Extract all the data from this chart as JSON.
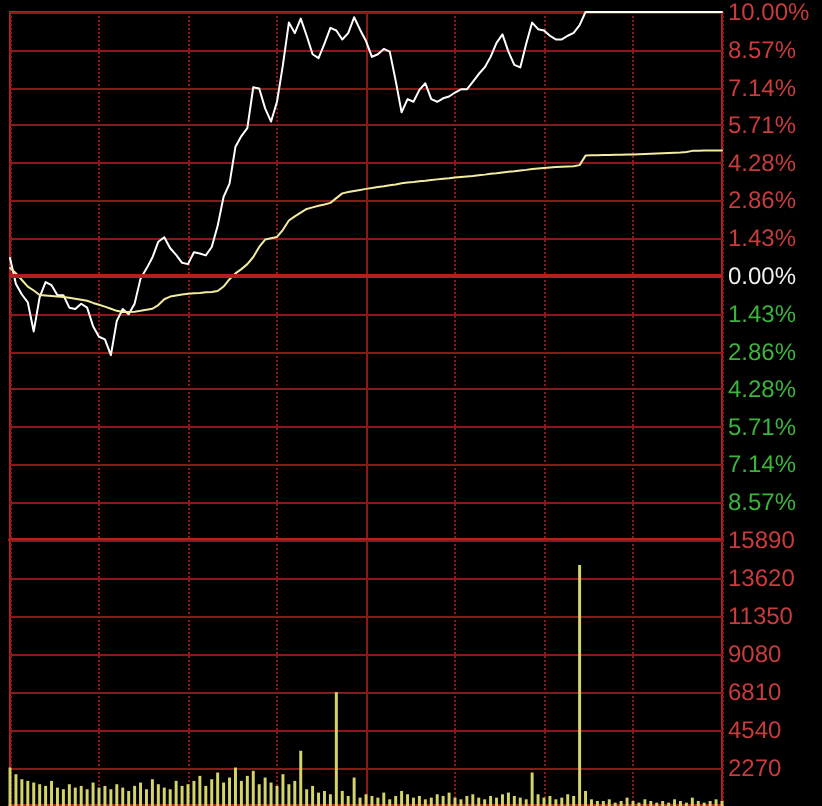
{
  "chart_data": [
    {
      "type": "line",
      "categories": [
        null,
        null,
        null,
        null,
        null,
        null,
        null,
        null,
        null,
        null,
        null,
        null,
        null,
        null,
        null,
        null,
        null,
        null,
        null,
        null,
        null,
        null,
        null,
        null,
        null,
        null,
        null,
        null,
        null,
        null,
        null,
        null,
        null,
        null,
        null,
        null,
        null,
        null,
        null,
        null,
        null,
        null,
        null,
        null,
        null,
        null,
        null,
        null,
        null,
        null,
        null,
        null,
        null,
        null,
        null,
        null,
        null,
        null,
        null,
        null,
        null,
        null,
        null,
        null,
        null,
        null,
        null,
        null,
        null,
        null,
        null,
        null,
        null,
        null,
        null,
        null,
        null,
        null,
        null,
        null,
        null,
        null,
        null,
        null,
        null,
        null,
        null,
        null,
        null,
        null,
        null,
        null,
        null,
        null,
        null,
        null,
        null,
        null,
        null,
        null,
        null,
        null,
        null,
        null,
        null,
        null,
        null,
        null,
        null,
        null,
        null,
        null,
        null,
        null,
        null,
        null,
        null,
        null,
        null,
        null,
        null
      ],
      "series": [
        {
          "color": "#ffffff",
          "values": [
            0.68,
            -0.3,
            -0.7,
            -1.0,
            -2.1,
            -0.8,
            -0.23,
            -0.35,
            -0.73,
            -0.73,
            -1.2,
            -1.25,
            -1.05,
            -1.2,
            -1.9,
            -2.3,
            -2.4,
            -3.0,
            -1.7,
            -1.25,
            -1.45,
            -1.05,
            -0.1,
            0.28,
            0.7,
            1.3,
            1.47,
            1.05,
            0.8,
            0.5,
            0.45,
            0.9,
            0.85,
            0.78,
            1.1,
            1.9,
            3.0,
            3.5,
            4.9,
            5.3,
            5.6,
            7.15,
            7.1,
            6.35,
            5.85,
            6.6,
            8.0,
            9.6,
            9.2,
            9.75,
            9.1,
            8.4,
            8.25,
            8.8,
            9.4,
            9.3,
            8.96,
            9.2,
            9.8,
            9.33,
            8.9,
            8.3,
            8.4,
            8.6,
            8.5,
            7.4,
            6.2,
            6.7,
            6.6,
            7.05,
            7.3,
            6.7,
            6.6,
            6.73,
            6.8,
            6.95,
            7.07,
            7.07,
            7.35,
            7.65,
            7.9,
            8.3,
            8.83,
            9.15,
            8.5,
            8.0,
            7.9,
            8.8,
            9.6,
            9.35,
            9.3,
            9.1,
            8.96,
            8.96,
            9.1,
            9.21,
            9.5,
            10,
            10,
            10,
            10,
            10,
            10,
            10,
            10,
            10,
            10,
            10,
            10,
            10,
            10,
            10,
            10,
            10,
            10,
            10,
            10,
            10,
            10,
            10,
            10
          ]
        },
        {
          "color": "#f2eca0",
          "values": [
            0.3,
            0.1,
            -0.15,
            -0.4,
            -0.55,
            -0.72,
            -0.74,
            -0.76,
            -0.78,
            -0.8,
            -0.82,
            -0.86,
            -0.9,
            -0.94,
            -1.02,
            -1.09,
            -1.16,
            -1.24,
            -1.32,
            -1.36,
            -1.36,
            -1.35,
            -1.32,
            -1.28,
            -1.24,
            -1.1,
            -0.88,
            -0.78,
            -0.74,
            -0.7,
            -0.67,
            -0.65,
            -0.64,
            -0.62,
            -0.61,
            -0.57,
            -0.4,
            -0.12,
            0.1,
            0.26,
            0.45,
            0.72,
            1.1,
            1.38,
            1.43,
            1.48,
            1.75,
            2.1,
            2.26,
            2.4,
            2.54,
            2.6,
            2.66,
            2.71,
            2.77,
            2.95,
            3.13,
            3.18,
            3.22,
            3.26,
            3.3,
            3.33,
            3.37,
            3.4,
            3.44,
            3.47,
            3.51,
            3.54,
            3.56,
            3.59,
            3.61,
            3.64,
            3.66,
            3.68,
            3.7,
            3.73,
            3.75,
            3.77,
            3.79,
            3.82,
            3.84,
            3.87,
            3.89,
            3.92,
            3.95,
            3.97,
            4.0,
            4.02,
            4.05,
            4.07,
            4.09,
            4.11,
            4.13,
            4.14,
            4.15,
            4.16,
            4.2,
            4.56,
            4.57,
            4.57,
            4.58,
            4.58,
            4.59,
            4.59,
            4.6,
            4.6,
            4.61,
            4.62,
            4.63,
            4.64,
            4.65,
            4.66,
            4.67,
            4.68,
            4.7,
            4.74,
            4.74,
            4.75,
            4.75,
            4.75,
            4.75
          ]
        }
      ],
      "ylim": [
        -10,
        10
      ],
      "yticks": [
        {
          "value": 10,
          "label": "10.00%"
        },
        {
          "value": 8.57,
          "label": "8.57%"
        },
        {
          "value": 7.14,
          "label": "7.14%"
        },
        {
          "value": 5.71,
          "label": "5.71%"
        },
        {
          "value": 4.28,
          "label": "4.28%"
        },
        {
          "value": 2.86,
          "label": "2.86%"
        },
        {
          "value": 1.43,
          "label": "1.43%"
        },
        {
          "value": 0,
          "label": "0.00%"
        },
        {
          "value": -1.43,
          "label": "1.43%"
        },
        {
          "value": -2.86,
          "label": "2.86%"
        },
        {
          "value": -4.28,
          "label": "4.28%"
        },
        {
          "value": -5.71,
          "label": "5.71%"
        },
        {
          "value": -7.14,
          "label": "7.14%"
        },
        {
          "value": -8.57,
          "label": "8.57%"
        }
      ],
      "ref_lines": [
        {
          "axis": "y",
          "value": 0,
          "color": "#b42020"
        }
      ],
      "grid": true,
      "tick_labels": "y"
    },
    {
      "type": "bar",
      "categories": [
        null,
        null,
        null,
        null,
        null,
        null,
        null,
        null,
        null,
        null,
        null,
        null,
        null,
        null,
        null,
        null,
        null,
        null,
        null,
        null,
        null,
        null,
        null,
        null,
        null,
        null,
        null,
        null,
        null,
        null,
        null,
        null,
        null,
        null,
        null,
        null,
        null,
        null,
        null,
        null,
        null,
        null,
        null,
        null,
        null,
        null,
        null,
        null,
        null,
        null,
        null,
        null,
        null,
        null,
        null,
        null,
        null,
        null,
        null,
        null,
        null,
        null,
        null,
        null,
        null,
        null,
        null,
        null,
        null,
        null,
        null,
        null,
        null,
        null,
        null,
        null,
        null,
        null,
        null,
        null,
        null,
        null,
        null,
        null,
        null,
        null,
        null,
        null,
        null,
        null,
        null,
        null,
        null,
        null,
        null,
        null,
        null,
        null,
        null,
        null,
        null,
        null,
        null,
        null,
        null,
        null,
        null,
        null,
        null,
        null,
        null,
        null,
        null,
        null,
        null,
        null,
        null,
        null,
        null,
        null,
        null
      ],
      "values": [
        2300,
        1900,
        1600,
        1500,
        1400,
        1300,
        1200,
        1500,
        1100,
        1000,
        1300,
        1100,
        1200,
        1000,
        1400,
        1100,
        1200,
        1000,
        1300,
        1100,
        900,
        1200,
        1400,
        1000,
        1600,
        1300,
        1100,
        1000,
        1500,
        1200,
        1300,
        1500,
        1800,
        1200,
        1600,
        2000,
        1400,
        1700,
        2300,
        1500,
        1800,
        2100,
        1300,
        1700,
        1400,
        1200,
        1900,
        1300,
        1500,
        3300,
        1000,
        1200,
        800,
        900,
        700,
        6800,
        900,
        600,
        1700,
        500,
        700,
        600,
        500,
        800,
        400,
        600,
        900,
        700,
        500,
        600,
        400,
        500,
        700,
        600,
        800,
        500,
        400,
        600,
        700,
        500,
        400,
        600,
        500,
        700,
        800,
        600,
        500,
        400,
        2000,
        700,
        500,
        600,
        400,
        500,
        700,
        600,
        14400,
        900,
        400,
        300,
        300,
        400,
        200,
        300,
        500,
        300,
        200,
        400,
        300,
        200,
        300,
        200,
        400,
        300,
        200,
        500,
        300,
        200,
        300,
        400,
        300
      ],
      "color": "#d4d468",
      "ylim": [
        0,
        15890
      ],
      "yticks": [
        2270,
        4540,
        6810,
        9080,
        11350,
        13620,
        15890
      ],
      "grid": true,
      "tick_labels": "y"
    }
  ]
}
